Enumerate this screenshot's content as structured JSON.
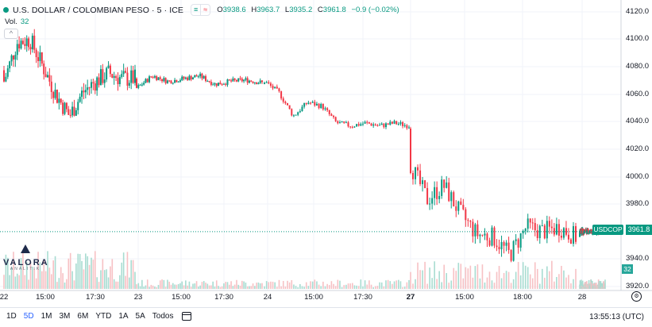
{
  "legend": {
    "title": "U.S. DOLLAR / COLOMBIAN PESO · 5 · ICE",
    "pill_left": "≡",
    "pill_right": "≈",
    "open_label": "O",
    "open": "3938.6",
    "high_label": "H",
    "high": "3963.7",
    "low_label": "L",
    "low": "3935.2",
    "close_label": "C",
    "close": "3961.8",
    "change": "−0.9 (−0.02%)"
  },
  "volume_legend": {
    "label": "Vol.",
    "value": "32"
  },
  "collapse_icon": "^",
  "logo": {
    "word": "VALORA",
    "sub": "ANALITIK"
  },
  "y_axis": [
    "4120.0",
    "4100.0",
    "4080.0",
    "4060.0",
    "4040.0",
    "4020.0",
    "4000.0",
    "3980.0",
    "3940.0",
    "3920.0"
  ],
  "price_badge": {
    "symbol": "USDCOP",
    "price": "3961.8"
  },
  "volume_badge": "32",
  "x_axis": [
    {
      "label": "22",
      "bold": false
    },
    {
      "label": "15:00",
      "bold": false
    },
    {
      "label": "17:30",
      "bold": false
    },
    {
      "label": "23",
      "bold": false
    },
    {
      "label": "15:00",
      "bold": false
    },
    {
      "label": "17:30",
      "bold": false
    },
    {
      "label": "24",
      "bold": false
    },
    {
      "label": "15:00",
      "bold": false
    },
    {
      "label": "17:30",
      "bold": false
    },
    {
      "label": "27",
      "bold": true
    },
    {
      "label": "15:00",
      "bold": false
    },
    {
      "label": "18:00",
      "bold": false
    },
    {
      "label": "28",
      "bold": false
    }
  ],
  "ranges": [
    "1D",
    "5D",
    "1M",
    "3M",
    "6M",
    "YTD",
    "1A",
    "5A",
    "Todos"
  ],
  "active_range": "5D",
  "clock": "13:55:13 (UTC)",
  "colors": {
    "up": "#089981",
    "down": "#f23645",
    "up_vol": "#a8dcd1",
    "down_vol": "#f7c1c4",
    "accent": "#2962ff"
  },
  "chart_data": {
    "type": "candlestick",
    "symbol": "USDCOP",
    "ylim": [
      3915,
      4125
    ],
    "y_ticks": [
      4120,
      4100,
      4080,
      4060,
      4040,
      4020,
      4000,
      3980,
      3940,
      3920
    ],
    "current_price": 3961.8,
    "segments": [
      {
        "session": "22",
        "points": [
          [
            4078,
            4070
          ],
          [
            4085,
            4098
          ],
          [
            4095,
            4100
          ],
          [
            4090,
            4080
          ],
          [
            4075,
            4060
          ],
          [
            4065,
            4045
          ],
          [
            4050,
            4062
          ],
          [
            4058,
            4070
          ],
          [
            4072,
            4076
          ],
          [
            4074,
            4072
          ],
          [
            4072,
            4072
          ]
        ]
      },
      {
        "session": "23",
        "points": [
          [
            4072,
            4065
          ],
          [
            4068,
            4074
          ],
          [
            4074,
            4070
          ],
          [
            4070,
            4072
          ],
          [
            4072,
            4074
          ],
          [
            4072,
            4068
          ],
          [
            4068,
            4070
          ],
          [
            4070,
            4071
          ],
          [
            4071,
            4069
          ]
        ]
      },
      {
        "session": "24",
        "points": [
          [
            4068,
            4070
          ],
          [
            4070,
            4062
          ],
          [
            4060,
            4045
          ],
          [
            4045,
            4055
          ],
          [
            4058,
            4052
          ],
          [
            4050,
            4040
          ],
          [
            4040,
            4038
          ],
          [
            4038,
            4040
          ],
          [
            4040,
            4038
          ],
          [
            4038,
            4040
          ],
          [
            4040,
            4038
          ]
        ]
      },
      {
        "session": "27",
        "points": [
          [
            4036,
            4010
          ],
          [
            4005,
            3985
          ],
          [
            3980,
            3995
          ],
          [
            3993,
            3975
          ],
          [
            3975,
            3960
          ],
          [
            3960,
            3958
          ],
          [
            3958,
            3945
          ],
          [
            3950,
            3965
          ],
          [
            3965,
            3962
          ],
          [
            3962,
            3965
          ],
          [
            3968,
            3958
          ]
        ]
      },
      {
        "session": "28",
        "points": [
          [
            3958,
            3962
          ],
          [
            3962,
            3961.8
          ]
        ]
      }
    ]
  }
}
